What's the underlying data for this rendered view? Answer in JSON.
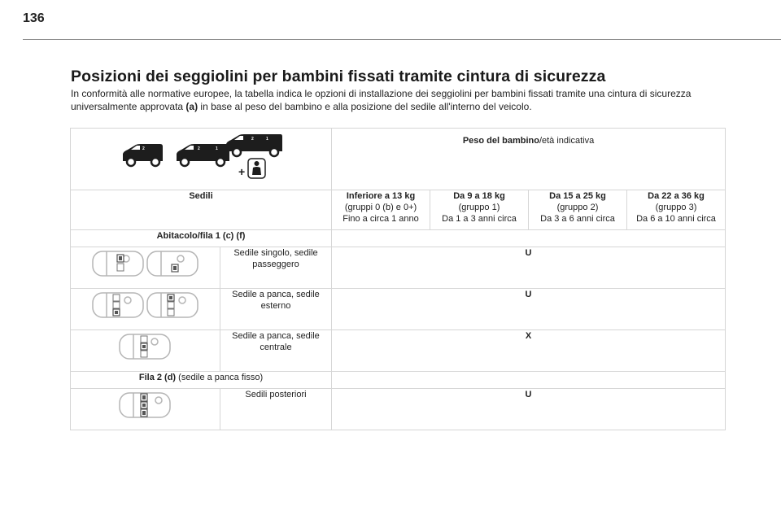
{
  "page": {
    "number": "136",
    "title": "Posizioni dei seggiolini per bambini fissati tramite cintura di sicurezza",
    "intro_part1": "In conformità alle normative europee, la tabella indica le opzioni di installazione dei seggiolini per bambini fissati tramite una cintura di sicurezza universalmente approvata ",
    "intro_ref": "(a)",
    "intro_part2": " in base al peso del bambino e alla posizione del sedile all'interno del veicolo."
  },
  "table": {
    "header_weight_bold": "Peso del bambino",
    "header_weight_rest": "/età indicativa",
    "seats_label": "Sedili",
    "columns": [
      {
        "weight": "Inferiore a 13 kg",
        "group": "(gruppi 0 (b) e 0+)",
        "age": "Fino a circa 1 anno"
      },
      {
        "weight": "Da 9 a 18 kg",
        "group": "(gruppo 1)",
        "age": "Da 1 a 3 anni circa"
      },
      {
        "weight": "Da 15 a 25 kg",
        "group": "(gruppo 2)",
        "age": "Da 3 a 6 anni circa"
      },
      {
        "weight": "Da 22 a 36 kg",
        "group": "(gruppo 3)",
        "age": "Da 6 a 10 anni circa"
      }
    ],
    "section1": "Abitacolo/fila 1 (c) (f)",
    "section2_bold": "Fila 2 (d)",
    "section2_rest": " (sedile a panca fisso)",
    "rows": [
      {
        "label": "Sedile singolo, sedile passeggero",
        "value": "U"
      },
      {
        "label": "Sedile a panca, sedile esterno",
        "value": "U"
      },
      {
        "label": "Sedile a panca, sedile centrale",
        "value": "X"
      },
      {
        "label": "Sedili posteriori",
        "value": "U"
      }
    ]
  },
  "icons": {
    "vans": "van-silhouettes-icon",
    "child_seat": "child-seat-plus-icon",
    "car_top": "car-top-view-icon"
  }
}
